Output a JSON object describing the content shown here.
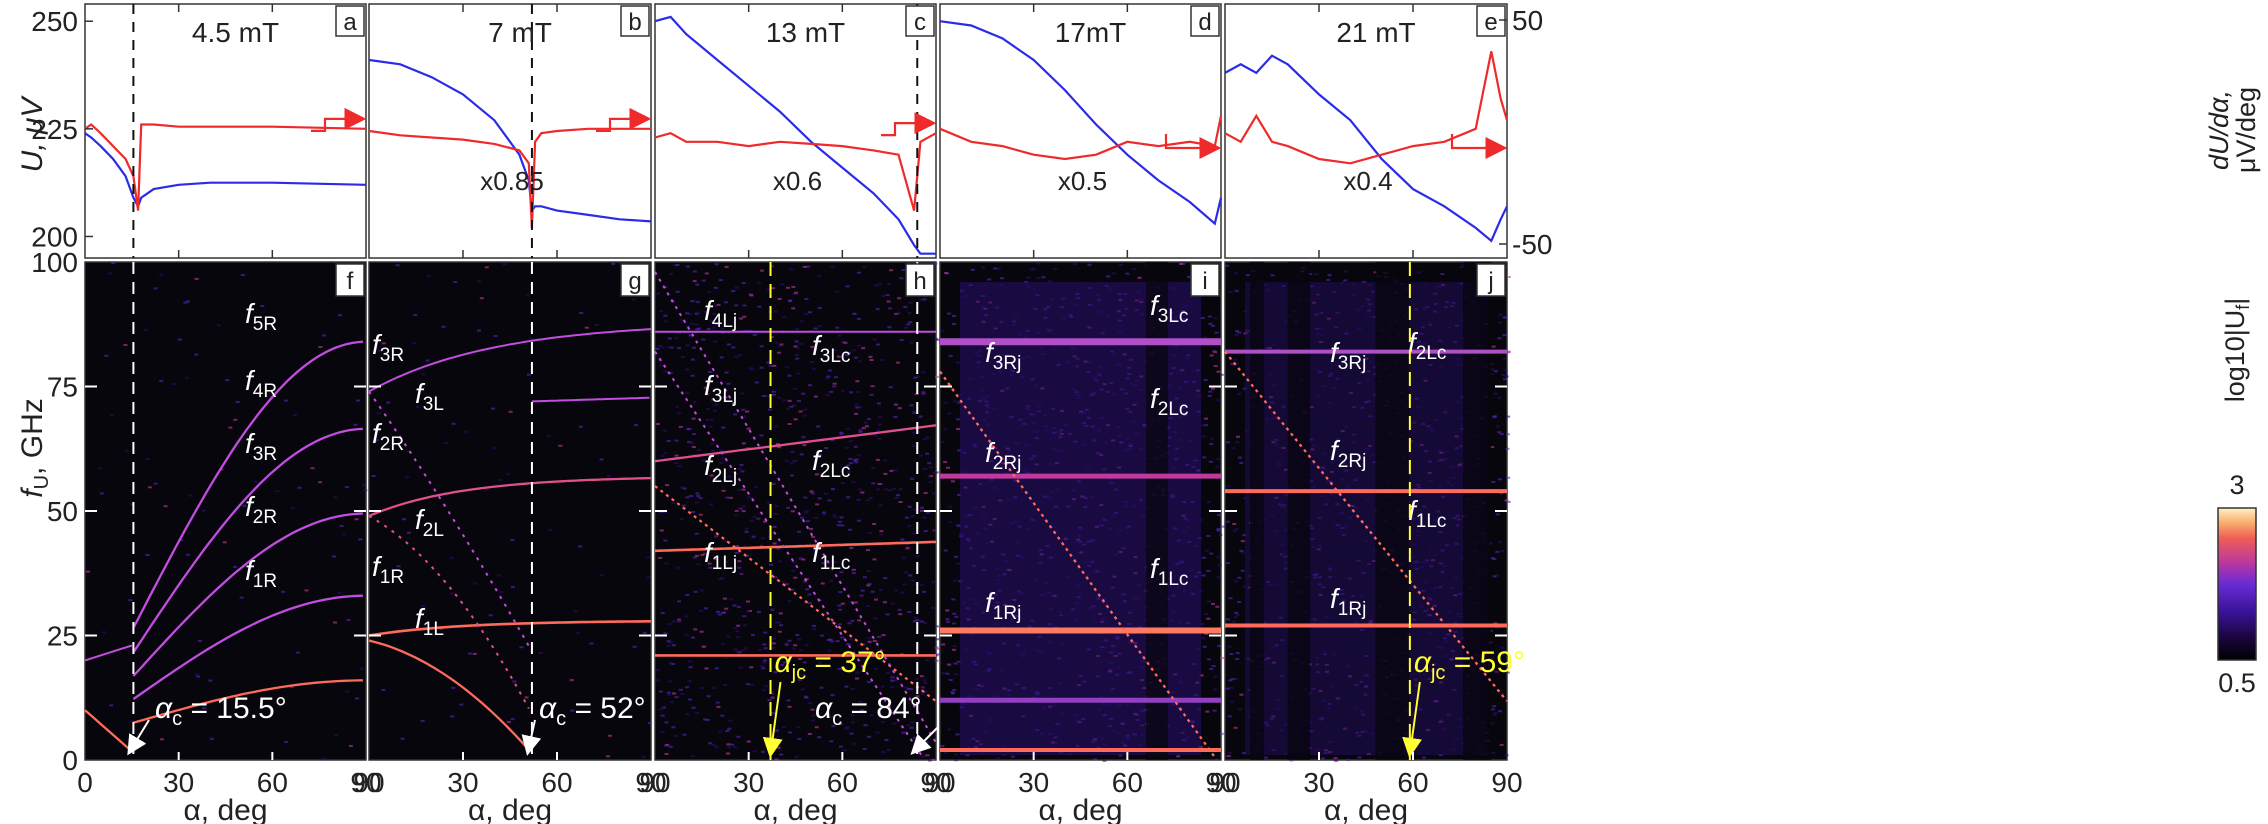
{
  "figure": {
    "top_ylabel_left": "U, μV",
    "top_ylabel_right_line1": "dU/dα,",
    "top_ylabel_right_line2": "μV/deg",
    "bottom_ylabel_main": "f",
    "bottom_ylabel_sub": "U",
    "bottom_ylabel_unit": ", GHz",
    "colorbar_label": "log10|U",
    "colorbar_label_sub": "f",
    "colorbar_label_end": "|",
    "colorbar_ticks": [
      "3",
      "0.5"
    ],
    "colorbar_colors": [
      "#000000",
      "#1a0640",
      "#3a1399",
      "#6a2bd6",
      "#c0399c",
      "#ef5e55",
      "#f7ab6c",
      "#fff1c4"
    ]
  },
  "chart_data": [
    {
      "type": "line",
      "panel": "a",
      "field": "4.5 mT",
      "x": [
        0,
        2,
        5,
        9,
        13,
        15.5,
        17,
        18,
        22,
        30,
        40,
        60,
        90
      ],
      "series": [
        {
          "name": "U",
          "color": "#2b2be8",
          "values": [
            224,
            223,
            221,
            218,
            214,
            209,
            207,
            209,
            211,
            212,
            212.5,
            212.5,
            212
          ]
        },
        {
          "name": "dU/dα",
          "color": "#ee2a2a",
          "values": [
            225,
            226,
            224,
            221,
            218,
            214,
            206,
            226,
            226,
            225.5,
            225.5,
            225.5,
            225
          ]
        }
      ],
      "ylim": [
        195,
        254
      ],
      "xlim": [
        0,
        90
      ],
      "yticks": [
        200,
        225,
        250
      ],
      "critical_angle": 15.5
    },
    {
      "type": "line",
      "panel": "b",
      "field": "7 mT",
      "scale": "x0.85",
      "x": [
        0,
        10,
        20,
        30,
        40,
        48,
        51,
        52,
        53,
        55,
        60,
        70,
        80,
        90
      ],
      "series": [
        {
          "name": "U",
          "color": "#2b2be8",
          "values": [
            241,
            240,
            237,
            233,
            227,
            219,
            213,
            206,
            207,
            207,
            206,
            205,
            204,
            203.5
          ]
        },
        {
          "name": "dU/dα",
          "color": "#ee2a2a",
          "values": [
            224.5,
            223.5,
            223,
            222.5,
            221.5,
            220,
            217,
            202,
            222,
            224,
            224.5,
            225,
            225,
            225
          ]
        }
      ],
      "ylim": [
        195,
        254
      ],
      "xlim": [
        0,
        90
      ],
      "critical_angle": 52
    },
    {
      "type": "line",
      "panel": "c",
      "field": "13 mT",
      "scale": "x0.6",
      "x": [
        0,
        5,
        10,
        20,
        30,
        40,
        50,
        60,
        70,
        78,
        83,
        85,
        90
      ],
      "series": [
        {
          "name": "U",
          "color": "#2b2be8",
          "values": [
            250,
            251,
            247,
            241,
            235,
            229,
            222,
            216,
            210,
            204,
            198,
            196,
            196
          ]
        },
        {
          "name": "dU/dα",
          "color": "#ee2a2a",
          "values": [
            223,
            224,
            222,
            222,
            221,
            222,
            221.5,
            221,
            220,
            219,
            206,
            222,
            224
          ]
        }
      ],
      "ylim": [
        195,
        254
      ],
      "xlim": [
        0,
        90
      ],
      "critical_angle": 84
    },
    {
      "type": "line",
      "panel": "d",
      "field": "17mT",
      "scale": "x0.5",
      "x": [
        0,
        10,
        20,
        30,
        40,
        50,
        60,
        70,
        80,
        88,
        90
      ],
      "series": [
        {
          "name": "U",
          "color": "#2b2be8",
          "values": [
            250,
            249,
            246,
            241,
            234,
            226,
            219,
            213,
            208,
            203,
            209
          ]
        },
        {
          "name": "dU/dα",
          "color": "#ee2a2a",
          "values": [
            225,
            222,
            221,
            219,
            218,
            219,
            222,
            221,
            222,
            221,
            228
          ]
        }
      ],
      "ylim": [
        195,
        254
      ],
      "xlim": [
        0,
        90
      ]
    },
    {
      "type": "line",
      "panel": "e",
      "field": "21 mT",
      "scale": "x0.4",
      "x": [
        0,
        5,
        10,
        15,
        20,
        30,
        40,
        50,
        60,
        70,
        80,
        85,
        88,
        90
      ],
      "series": [
        {
          "name": "U",
          "color": "#2b2be8",
          "values": [
            238,
            240,
            238,
            242,
            240,
            233,
            227,
            218,
            211,
            207,
            202,
            199,
            204,
            207
          ]
        },
        {
          "name": "dU/dα",
          "color": "#ee2a2a",
          "values": [
            224,
            222,
            228,
            222,
            221,
            218,
            217,
            219,
            221,
            222,
            225,
            243,
            232,
            227
          ]
        }
      ],
      "ylim": [
        195,
        254
      ],
      "xlim": [
        0,
        90
      ]
    },
    {
      "type": "heatmap",
      "panel": "f",
      "field": "4.5 mT",
      "x_label": "α, deg",
      "xlim": [
        0,
        90
      ],
      "ylim": [
        0,
        100
      ],
      "critical_label": "α",
      "critical_sub": "c",
      "critical_value": " = 15.5°",
      "critical_angle": 15.5,
      "modes": [
        {
          "label": "f",
          "sub": "5R",
          "f90": 84
        },
        {
          "label": "f",
          "sub": "4R",
          "f90": 66.5
        },
        {
          "label": "f",
          "sub": "3R",
          "f90": 49.5
        },
        {
          "label": "f",
          "sub": "2R",
          "f90": 33
        },
        {
          "label": "f",
          "sub": "1R",
          "f90": 16
        }
      ]
    },
    {
      "type": "heatmap",
      "panel": "g",
      "field": "7 mT",
      "x_label": "α, deg",
      "xlim": [
        0,
        90
      ],
      "ylim": [
        0,
        100
      ],
      "critical_label": "α",
      "critical_sub": "c",
      "critical_value": " = 52°",
      "critical_angle": 52,
      "modes": [
        {
          "label": "f",
          "sub": "3R",
          "f90": 87
        },
        {
          "label": "f",
          "sub": "3L",
          "f90": 72
        },
        {
          "label": "f",
          "sub": "2R",
          "f90": 57
        },
        {
          "label": "f",
          "sub": "2L",
          "f90": 0
        },
        {
          "label": "f",
          "sub": "1R",
          "f90": 28
        },
        {
          "label": "f",
          "sub": "1L",
          "f90": 0
        }
      ]
    },
    {
      "type": "heatmap",
      "panel": "h",
      "field": "13 mT",
      "x_label": "α, deg",
      "xlim": [
        0,
        90
      ],
      "ylim": [
        0,
        100
      ],
      "critical_label": "α",
      "critical_sub": "c",
      "critical_value": " = 84°",
      "critical_angle": 84,
      "jc_label": "α",
      "jc_sub": "jc",
      "jc_value": " = 37°",
      "jc_angle": 37,
      "modes": [
        {
          "label": "f",
          "sub": "4Lj"
        },
        {
          "label": "f",
          "sub": "3Lc",
          "f90": 86
        },
        {
          "label": "f",
          "sub": "3Lj"
        },
        {
          "label": "f",
          "sub": "2Lc",
          "f90": 64
        },
        {
          "label": "f",
          "sub": "2Lj"
        },
        {
          "label": "f",
          "sub": "1Lj"
        },
        {
          "label": "f",
          "sub": "1Lc",
          "f90": 21
        }
      ]
    },
    {
      "type": "heatmap",
      "panel": "i",
      "field": "17mT",
      "x_label": "α, deg",
      "xlim": [
        0,
        90
      ],
      "ylim": [
        0,
        100
      ],
      "modes": [
        {
          "label": "f",
          "sub": "3Lc"
        },
        {
          "label": "f",
          "sub": "3Rj",
          "f90": 84
        },
        {
          "label": "f",
          "sub": "2Lc"
        },
        {
          "label": "f",
          "sub": "2Rj",
          "f90": 56
        },
        {
          "label": "f",
          "sub": "1Lc"
        },
        {
          "label": "f",
          "sub": "1Rj",
          "f90": 26
        }
      ]
    },
    {
      "type": "heatmap",
      "panel": "j",
      "field": "21 mT",
      "x_label": "α, deg",
      "xlim": [
        0,
        90
      ],
      "ylim": [
        0,
        100
      ],
      "jc_label": "α",
      "jc_sub": "jc",
      "jc_value": " = 59°",
      "jc_angle": 59,
      "modes": [
        {
          "label": "f",
          "sub": "3Rj",
          "f90": 82
        },
        {
          "label": "f",
          "sub": "2Lc"
        },
        {
          "label": "f",
          "sub": "2Rj",
          "f90": 54
        },
        {
          "label": "f",
          "sub": "1Lc"
        },
        {
          "label": "f",
          "sub": "1Rj",
          "f90": 27
        }
      ]
    }
  ],
  "axes": {
    "top_y_ticks": [
      "250",
      "225",
      "200"
    ],
    "right_y_ticks": [
      "50",
      "-50"
    ],
    "bottom_y_ticks": [
      "100",
      "75",
      "50",
      "25",
      "0"
    ],
    "x_ticks_first": [
      "0",
      "30",
      "60",
      "90"
    ],
    "x_ticks_rest": [
      "30",
      "60",
      "90"
    ]
  }
}
